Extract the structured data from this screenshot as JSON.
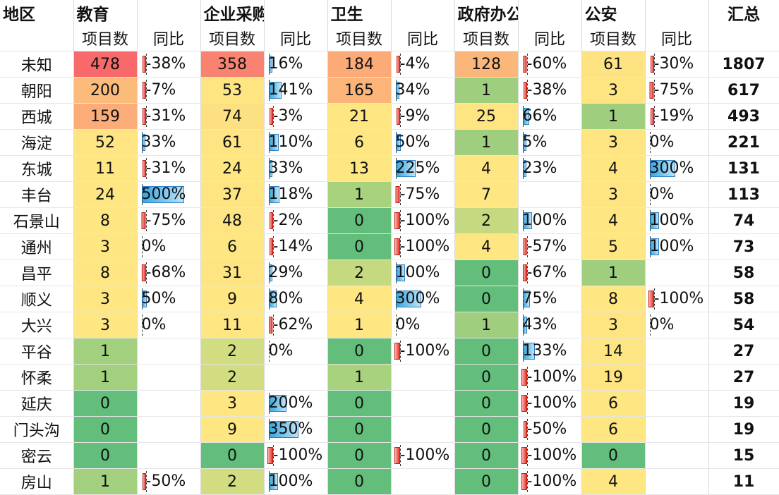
{
  "headers": {
    "region": "地区",
    "groups": [
      "教育",
      "企业采购",
      "卫生",
      "政府办公室",
      "公安"
    ],
    "sub_count": "项目数",
    "sub_yoy": "同比",
    "total": "汇总"
  },
  "rows": [
    {
      "region": "未知",
      "total": "1807",
      "cells": [
        {
          "count": "478",
          "color": "#f8696b",
          "yoy": "-38%",
          "yoy_value": -38
        },
        {
          "count": "358",
          "color": "#f98370",
          "yoy": "16%",
          "yoy_value": 16
        },
        {
          "count": "184",
          "color": "#fcaa78",
          "yoy": "-4%",
          "yoy_value": -4
        },
        {
          "count": "128",
          "color": "#fbb77a",
          "yoy": "-60%",
          "yoy_value": -60
        },
        {
          "count": "61",
          "color": "#fee382",
          "yoy": "-30%",
          "yoy_value": -30
        }
      ]
    },
    {
      "region": "朝阳",
      "total": "617",
      "cells": [
        {
          "count": "200",
          "color": "#fcbb7b",
          "yoy": "-7%",
          "yoy_value": -7
        },
        {
          "count": "53",
          "color": "#fee582",
          "yoy": "141%",
          "yoy_value": 141
        },
        {
          "count": "165",
          "color": "#fcb479",
          "yoy": "34%",
          "yoy_value": 34
        },
        {
          "count": "1",
          "color": "#9fcf7e",
          "yoy": "-38%",
          "yoy_value": -38
        },
        {
          "count": "3",
          "color": "#fee582",
          "yoy": "-75%",
          "yoy_value": -75
        }
      ]
    },
    {
      "region": "西城",
      "total": "493",
      "cells": [
        {
          "count": "159",
          "color": "#fbac78",
          "yoy": "-31%",
          "yoy_value": -31
        },
        {
          "count": "74",
          "color": "#fde081",
          "yoy": "-3%",
          "yoy_value": -3
        },
        {
          "count": "21",
          "color": "#fee782",
          "yoy": "-9%",
          "yoy_value": -9
        },
        {
          "count": "25",
          "color": "#fee582",
          "yoy": "66%",
          "yoy_value": 66
        },
        {
          "count": "1",
          "color": "#9fcf7e",
          "yoy": "-19%",
          "yoy_value": -19
        }
      ]
    },
    {
      "region": "海淀",
      "total": "221",
      "cells": [
        {
          "count": "52",
          "color": "#fee482",
          "yoy": "33%",
          "yoy_value": 33
        },
        {
          "count": "61",
          "color": "#fee482",
          "yoy": "110%",
          "yoy_value": 110
        },
        {
          "count": "6",
          "color": "#fee683",
          "yoy": "50%",
          "yoy_value": 50
        },
        {
          "count": "1",
          "color": "#9fcf7e",
          "yoy": "5%",
          "yoy_value": 5
        },
        {
          "count": "3",
          "color": "#fee582",
          "yoy": "0%",
          "yoy_value": 0
        }
      ]
    },
    {
      "region": "东城",
      "total": "131",
      "cells": [
        {
          "count": "11",
          "color": "#fee783",
          "yoy": "-31%",
          "yoy_value": -31
        },
        {
          "count": "24",
          "color": "#fee683",
          "yoy": "33%",
          "yoy_value": 33
        },
        {
          "count": "13",
          "color": "#fee783",
          "yoy": "225%",
          "yoy_value": 225
        },
        {
          "count": "4",
          "color": "#fee683",
          "yoy": "23%",
          "yoy_value": 23
        },
        {
          "count": "4",
          "color": "#fee683",
          "yoy": "300%",
          "yoy_value": 300
        }
      ]
    },
    {
      "region": "丰台",
      "total": "113",
      "cells": [
        {
          "count": "24",
          "color": "#fee683",
          "yoy": "500%",
          "yoy_value": 500
        },
        {
          "count": "37",
          "color": "#fee582",
          "yoy": "118%",
          "yoy_value": 118
        },
        {
          "count": "1",
          "color": "#a9d27f",
          "yoy": "-75%",
          "yoy_value": -75
        },
        {
          "count": "7",
          "color": "#fee683",
          "yoy": "",
          "yoy_value": null
        },
        {
          "count": "3",
          "color": "#fee582",
          "yoy": "0%",
          "yoy_value": 0
        }
      ]
    },
    {
      "region": "石景山",
      "total": "74",
      "cells": [
        {
          "count": "8",
          "color": "#fee783",
          "yoy": "-75%",
          "yoy_value": -75
        },
        {
          "count": "48",
          "color": "#fee482",
          "yoy": "-2%",
          "yoy_value": -2
        },
        {
          "count": "0",
          "color": "#63be7b",
          "yoy": "-100%",
          "yoy_value": -100
        },
        {
          "count": "2",
          "color": "#c5da80",
          "yoy": "100%",
          "yoy_value": 100
        },
        {
          "count": "4",
          "color": "#fee683",
          "yoy": "100%",
          "yoy_value": 100
        }
      ]
    },
    {
      "region": "通州",
      "total": "73",
      "cells": [
        {
          "count": "3",
          "color": "#fee683",
          "yoy": "0%",
          "yoy_value": 0
        },
        {
          "count": "6",
          "color": "#fee683",
          "yoy": "-14%",
          "yoy_value": -14
        },
        {
          "count": "0",
          "color": "#63be7b",
          "yoy": "-100%",
          "yoy_value": -100
        },
        {
          "count": "4",
          "color": "#fee683",
          "yoy": "-57%",
          "yoy_value": -57
        },
        {
          "count": "5",
          "color": "#fee683",
          "yoy": "100%",
          "yoy_value": 100
        }
      ]
    },
    {
      "region": "昌平",
      "total": "58",
      "cells": [
        {
          "count": "8",
          "color": "#fee783",
          "yoy": "-68%",
          "yoy_value": -68
        },
        {
          "count": "31",
          "color": "#fee582",
          "yoy": "29%",
          "yoy_value": 29
        },
        {
          "count": "2",
          "color": "#c5da80",
          "yoy": "100%",
          "yoy_value": 100
        },
        {
          "count": "0",
          "color": "#63be7b",
          "yoy": "-67%",
          "yoy_value": -67
        },
        {
          "count": "1",
          "color": "#9fcf7e",
          "yoy": "",
          "yoy_value": null
        }
      ]
    },
    {
      "region": "顺义",
      "total": "58",
      "cells": [
        {
          "count": "3",
          "color": "#fee683",
          "yoy": "50%",
          "yoy_value": 50
        },
        {
          "count": "9",
          "color": "#fee683",
          "yoy": "80%",
          "yoy_value": 80
        },
        {
          "count": "4",
          "color": "#fee683",
          "yoy": "300%",
          "yoy_value": 300
        },
        {
          "count": "0",
          "color": "#63be7b",
          "yoy": "75%",
          "yoy_value": 75
        },
        {
          "count": "8",
          "color": "#fee683",
          "yoy": "-100%",
          "yoy_value": -100
        }
      ]
    },
    {
      "region": "大兴",
      "total": "54",
      "cells": [
        {
          "count": "3",
          "color": "#fee683",
          "yoy": "0%",
          "yoy_value": 0
        },
        {
          "count": "11",
          "color": "#fee783",
          "yoy": "-62%",
          "yoy_value": -62
        },
        {
          "count": "1",
          "color": "#fee783",
          "yoy": "0%",
          "yoy_value": 0
        },
        {
          "count": "1",
          "color": "#9fcf7e",
          "yoy": "43%",
          "yoy_value": 43
        },
        {
          "count": "3",
          "color": "#fee582",
          "yoy": "0%",
          "yoy_value": 0
        }
      ]
    },
    {
      "region": "平谷",
      "total": "27",
      "cells": [
        {
          "count": "1",
          "color": "#a3d07e",
          "yoy": "",
          "yoy_value": null
        },
        {
          "count": "2",
          "color": "#d2dd81",
          "yoy": "0%",
          "yoy_value": 0
        },
        {
          "count": "0",
          "color": "#63be7b",
          "yoy": "-100%",
          "yoy_value": -100
        },
        {
          "count": "0",
          "color": "#63be7b",
          "yoy": "133%",
          "yoy_value": 133
        },
        {
          "count": "14",
          "color": "#fee583",
          "yoy": "",
          "yoy_value": null
        }
      ]
    },
    {
      "region": "怀柔",
      "total": "27",
      "cells": [
        {
          "count": "1",
          "color": "#a3d07e",
          "yoy": "",
          "yoy_value": null
        },
        {
          "count": "2",
          "color": "#d2dd81",
          "yoy": "",
          "yoy_value": null
        },
        {
          "count": "1",
          "color": "#a9d27f",
          "yoy": "",
          "yoy_value": null
        },
        {
          "count": "0",
          "color": "#63be7b",
          "yoy": "-100%",
          "yoy_value": -100
        },
        {
          "count": "19",
          "color": "#fee582",
          "yoy": "",
          "yoy_value": null
        }
      ]
    },
    {
      "region": "延庆",
      "total": "19",
      "cells": [
        {
          "count": "0",
          "color": "#63be7b",
          "yoy": "",
          "yoy_value": null
        },
        {
          "count": "3",
          "color": "#fee683",
          "yoy": "200%",
          "yoy_value": 200
        },
        {
          "count": "0",
          "color": "#63be7b",
          "yoy": "",
          "yoy_value": null
        },
        {
          "count": "0",
          "color": "#63be7b",
          "yoy": "-100%",
          "yoy_value": -100
        },
        {
          "count": "6",
          "color": "#fee683",
          "yoy": "",
          "yoy_value": null
        }
      ]
    },
    {
      "region": "门头沟",
      "total": "19",
      "cells": [
        {
          "count": "0",
          "color": "#63be7b",
          "yoy": "",
          "yoy_value": null
        },
        {
          "count": "9",
          "color": "#fee683",
          "yoy": "350%",
          "yoy_value": 350
        },
        {
          "count": "0",
          "color": "#63be7b",
          "yoy": "",
          "yoy_value": null
        },
        {
          "count": "0",
          "color": "#63be7b",
          "yoy": "-50%",
          "yoy_value": -50
        },
        {
          "count": "6",
          "color": "#fee683",
          "yoy": "",
          "yoy_value": null
        }
      ]
    },
    {
      "region": "密云",
      "total": "15",
      "cells": [
        {
          "count": "0",
          "color": "#63be7b",
          "yoy": "",
          "yoy_value": null
        },
        {
          "count": "0",
          "color": "#63be7b",
          "yoy": "-100%",
          "yoy_value": -100
        },
        {
          "count": "0",
          "color": "#63be7b",
          "yoy": "-100%",
          "yoy_value": -100
        },
        {
          "count": "0",
          "color": "#63be7b",
          "yoy": "-100%",
          "yoy_value": -100
        },
        {
          "count": "0",
          "color": "#63be7b",
          "yoy": "",
          "yoy_value": null
        }
      ]
    },
    {
      "region": "房山",
      "total": "11",
      "cells": [
        {
          "count": "1",
          "color": "#a3d07e",
          "yoy": "-50%",
          "yoy_value": -50
        },
        {
          "count": "2",
          "color": "#d2dd81",
          "yoy": "100%",
          "yoy_value": 100
        },
        {
          "count": "0",
          "color": "#63be7b",
          "yoy": "",
          "yoy_value": null
        },
        {
          "count": "0",
          "color": "#63be7b",
          "yoy": "-100%",
          "yoy_value": -100
        },
        {
          "count": "4",
          "color": "#fee683",
          "yoy": "",
          "yoy_value": null
        }
      ]
    }
  ]
}
